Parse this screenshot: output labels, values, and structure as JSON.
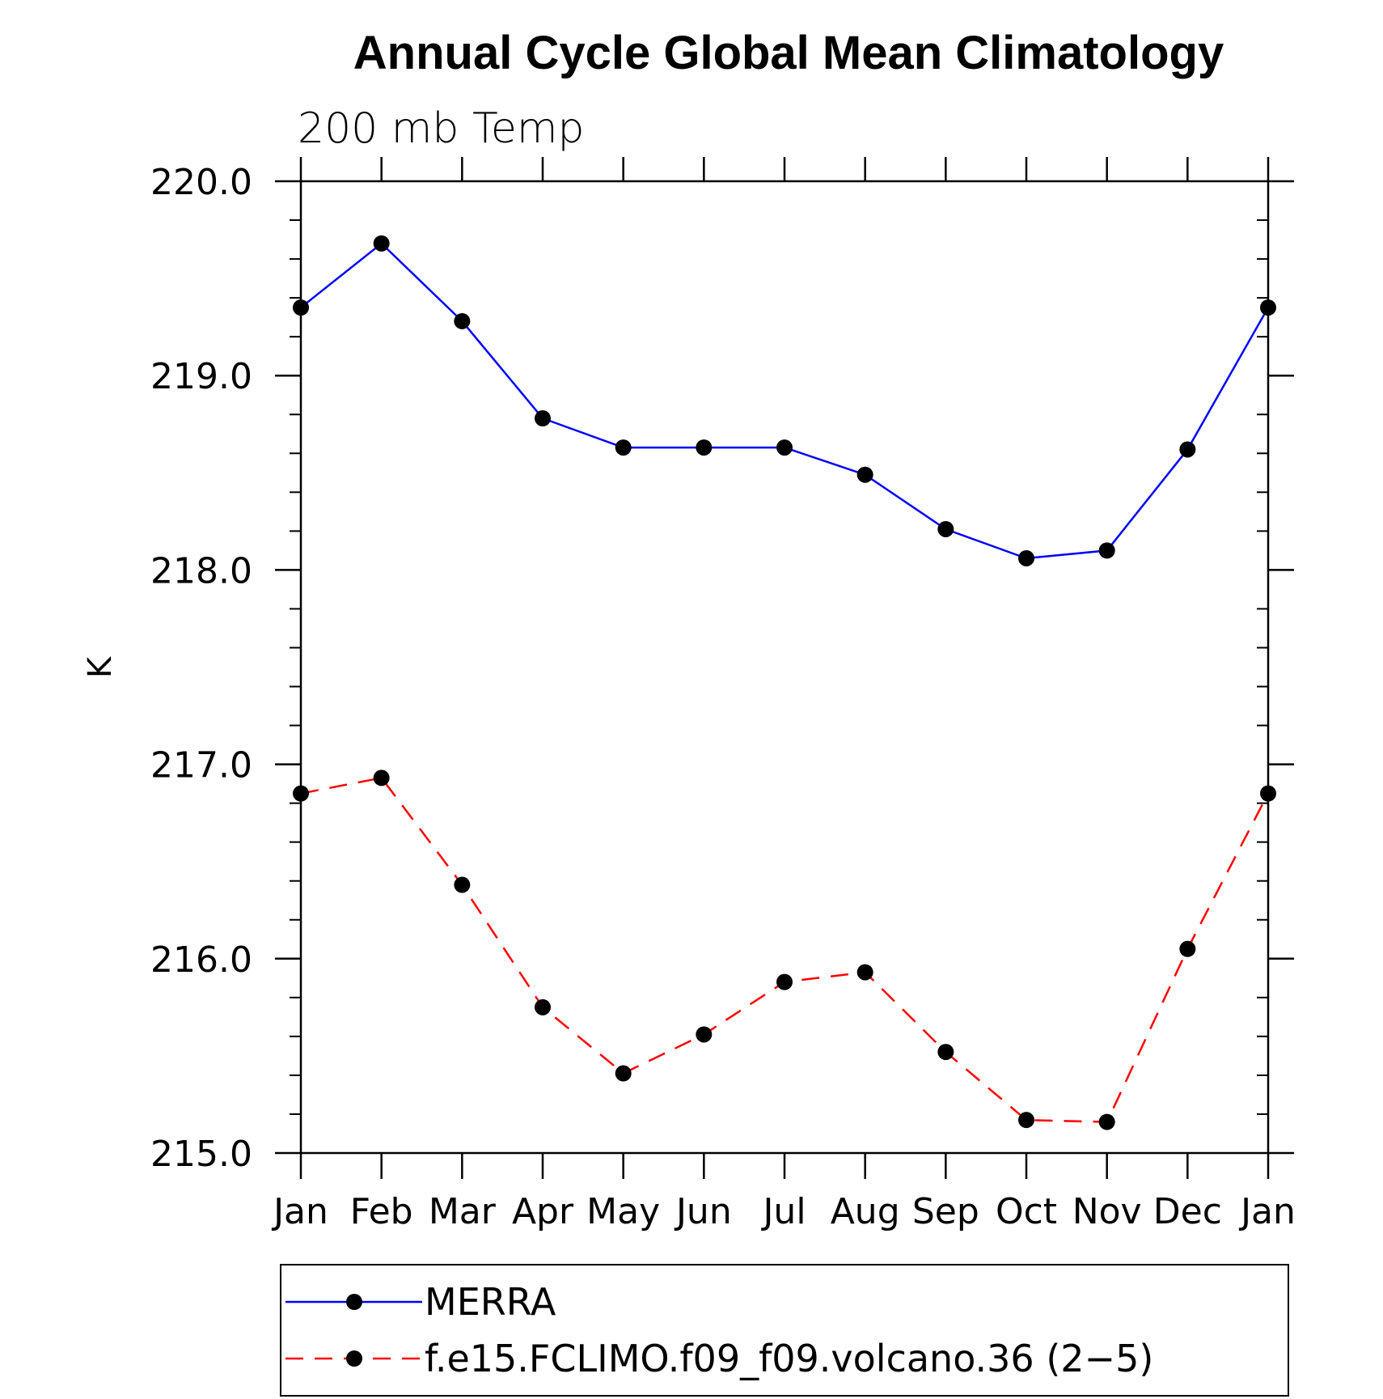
{
  "chart_data": {
    "type": "line",
    "title": "Annual Cycle Global Mean Climatology",
    "subtitle": "200 mb Temp",
    "xlabel": "",
    "ylabel": "K",
    "categories": [
      "Jan",
      "Feb",
      "Mar",
      "Apr",
      "May",
      "Jun",
      "Jul",
      "Aug",
      "Sep",
      "Oct",
      "Nov",
      "Dec",
      "Jan"
    ],
    "ylim": [
      215.0,
      220.0
    ],
    "yticks": [
      "215.0",
      "216.0",
      "217.0",
      "218.0",
      "219.0",
      "220.0"
    ],
    "series": [
      {
        "name": "MERRA",
        "color": "#0000ff",
        "dash": "solid",
        "values": [
          219.35,
          219.68,
          219.28,
          218.78,
          218.63,
          218.63,
          218.63,
          218.49,
          218.21,
          218.06,
          218.1,
          218.62,
          219.35
        ]
      },
      {
        "name": "f.e15.FCLIMO.f09_f09.volcano.36 (2−5)",
        "color": "#ff0000",
        "dash": "dashed",
        "values": [
          216.85,
          216.93,
          216.38,
          215.75,
          215.41,
          215.61,
          215.88,
          215.93,
          215.52,
          215.17,
          215.16,
          216.05,
          216.85
        ]
      }
    ],
    "grid": false,
    "legend_position": "bottom"
  }
}
